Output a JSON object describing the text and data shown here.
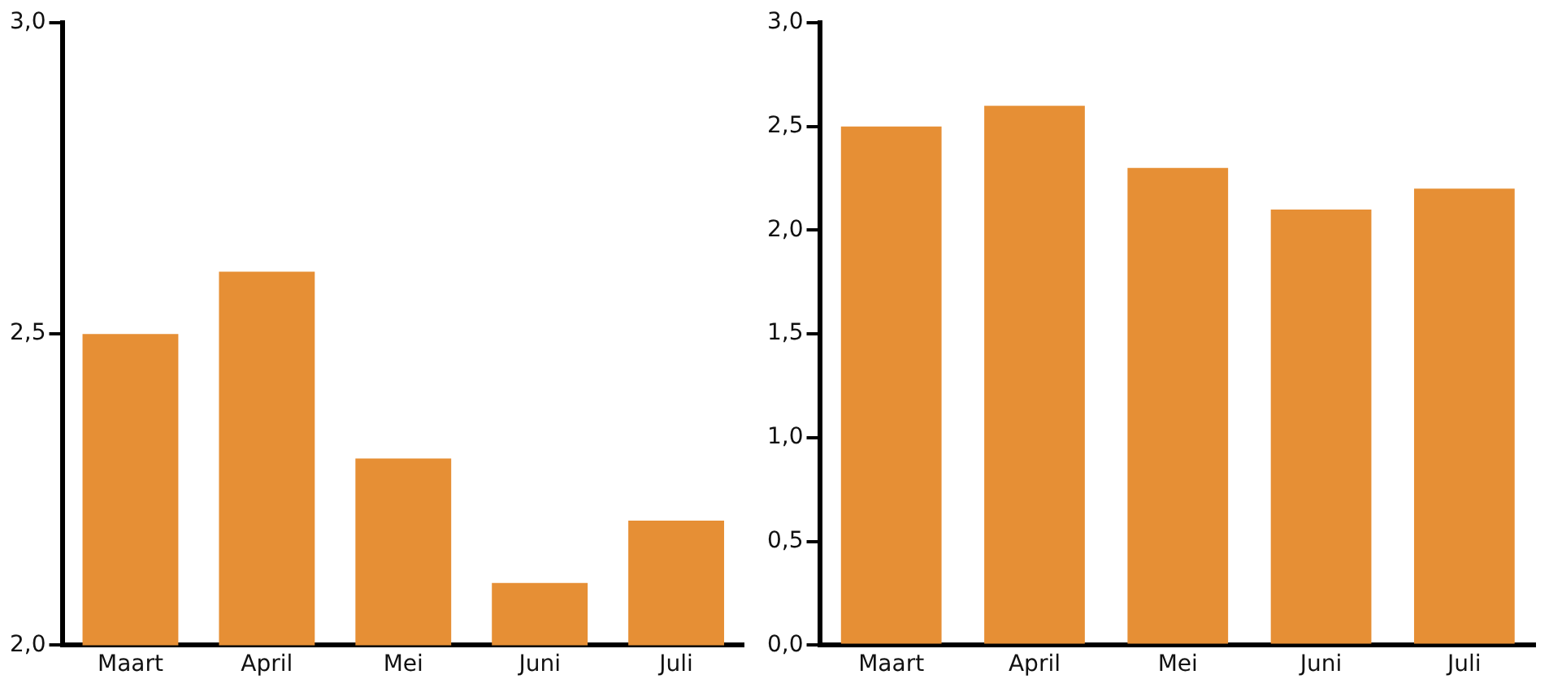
{
  "chart_data": [
    {
      "type": "bar",
      "categories": [
        "Maart",
        "April",
        "Mei",
        "Juni",
        "Juli"
      ],
      "values": [
        2.5,
        2.6,
        2.3,
        2.1,
        2.2
      ],
      "color": "#e68f35",
      "ylim": [
        2,
        3
      ],
      "yticks": [
        {
          "value": 2,
          "label": "2,0"
        },
        {
          "value": 2.5,
          "label": "2,5"
        },
        {
          "value": 3,
          "label": "3,0"
        }
      ],
      "grid": false,
      "legend": false
    },
    {
      "type": "bar",
      "categories": [
        "Maart",
        "April",
        "Mei",
        "Juni",
        "Juli"
      ],
      "values": [
        2.5,
        2.6,
        2.3,
        2.1,
        2.2
      ],
      "color": "#e68f35",
      "ylim": [
        0,
        3
      ],
      "yticks": [
        {
          "value": 0,
          "label": "0,0"
        },
        {
          "value": 0.5,
          "label": "0,5"
        },
        {
          "value": 1,
          "label": "1,0"
        },
        {
          "value": 1.5,
          "label": "1,5"
        },
        {
          "value": 2,
          "label": "2,0"
        },
        {
          "value": 2.5,
          "label": "2,5"
        },
        {
          "value": 3,
          "label": "3,0"
        }
      ],
      "grid": false,
      "legend": false
    }
  ]
}
